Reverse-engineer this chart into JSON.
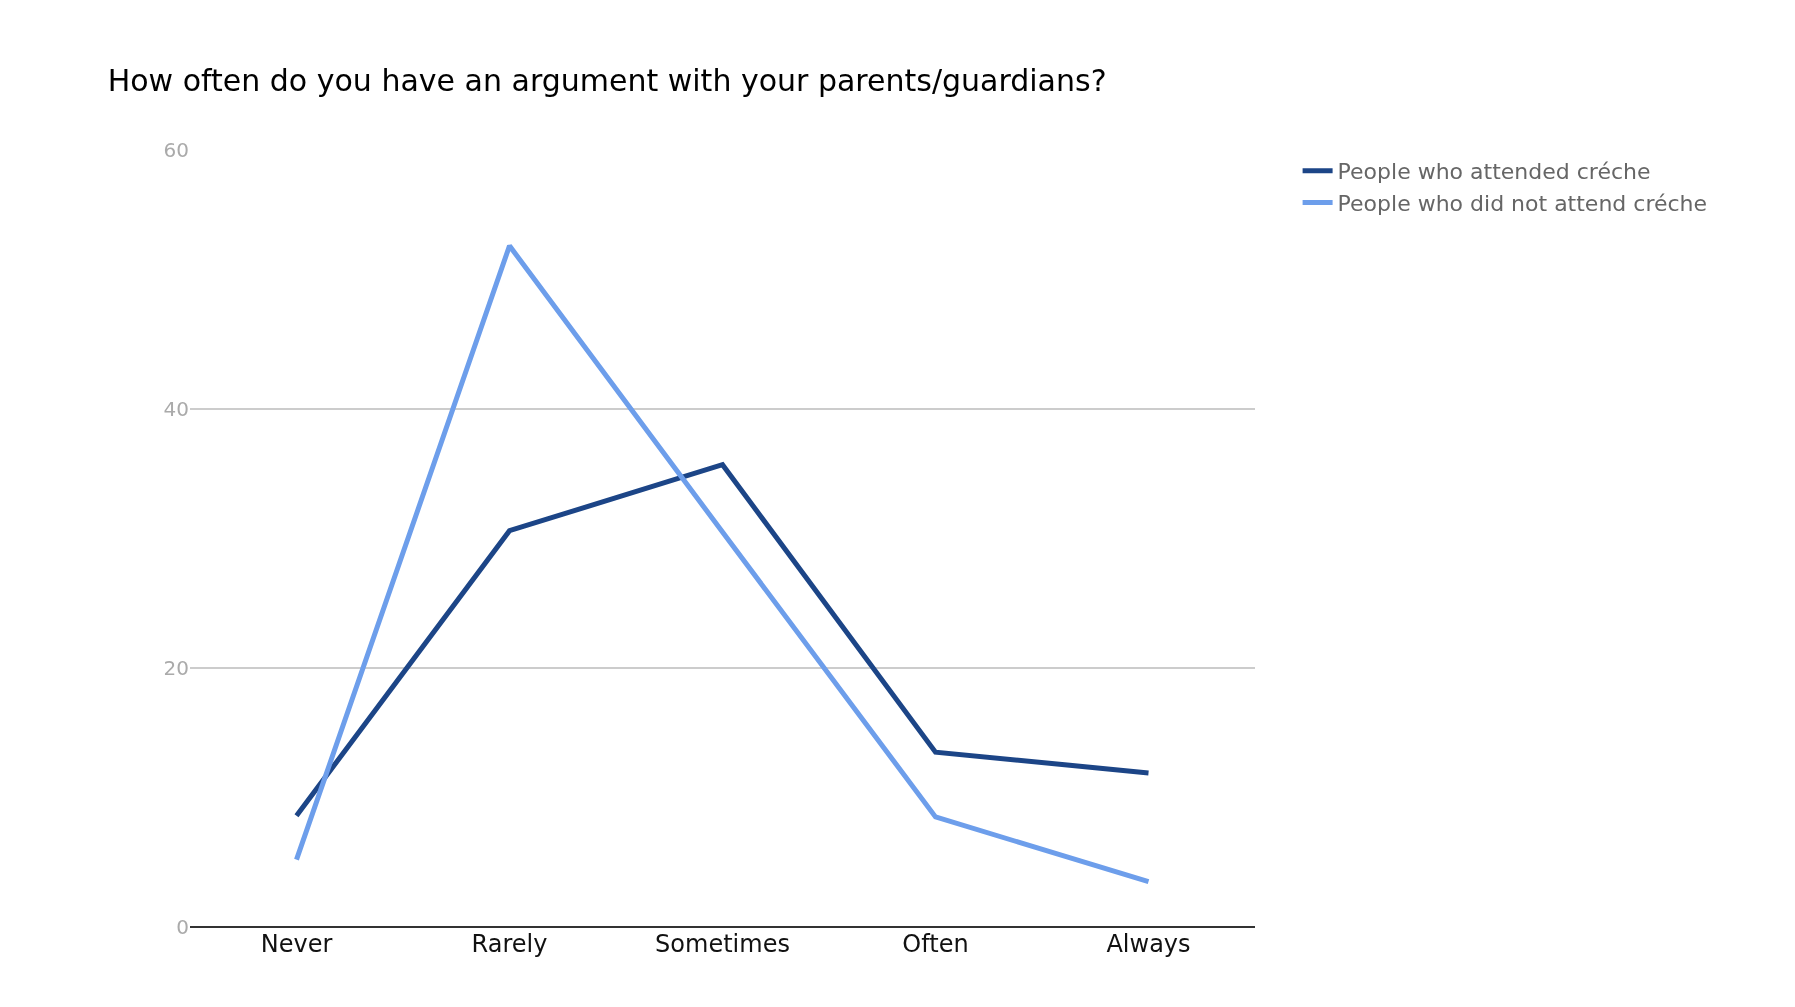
{
  "chart_data": {
    "type": "line",
    "title": "How often do you have an argument with your parents/guardians?",
    "categories": [
      "Never",
      "Rarely",
      "Sometimes",
      "Often",
      "Always"
    ],
    "series": [
      {
        "name": "People who attended créche",
        "color": "#1c4587",
        "values": [
          8.6,
          30.6,
          35.7,
          13.5,
          11.9
        ]
      },
      {
        "name": "People who did not attend créche",
        "color": "#6d9eeb",
        "values": [
          5.2,
          52.6,
          30.5,
          8.5,
          3.5
        ]
      }
    ],
    "ylim": [
      0,
      60
    ],
    "yticks": [
      0,
      20,
      40,
      60
    ],
    "grid": "y",
    "legend": "top right",
    "marker": "none",
    "line_style": "solid"
  }
}
